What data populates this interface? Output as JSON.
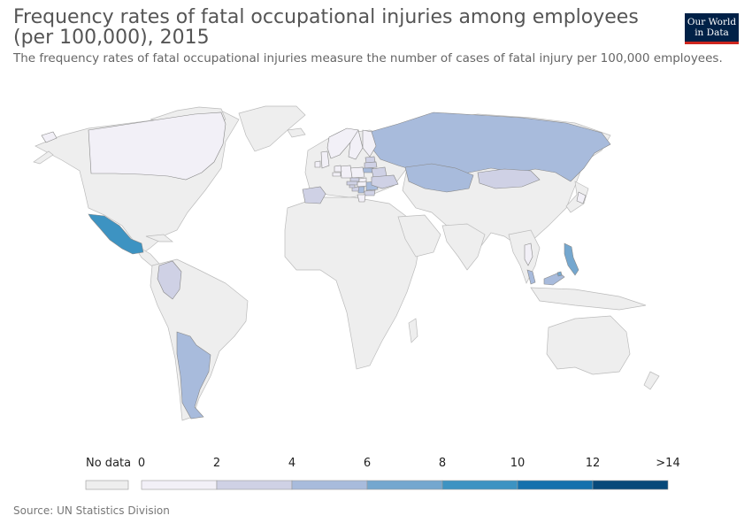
{
  "header": {
    "title": "Frequency rates of fatal occupational injuries among employees (per 100,000), 2015",
    "subtitle": "The frequency rates of fatal occupational injuries measure the number of cases of fatal injury per 100,000 employees."
  },
  "logo": {
    "line1": "Our World",
    "line2": "in Data"
  },
  "colors": {
    "no_data": "#eeeeee",
    "border": "#bbbbbb",
    "bins": [
      "#f2f0f7",
      "#cfd1e5",
      "#a8bbdc",
      "#74a7cf",
      "#3d93c2",
      "#1571ad",
      "#08497a"
    ]
  },
  "legend": {
    "no_data_label": "No data",
    "ticks": [
      "0",
      "2",
      "4",
      "6",
      "8",
      "10",
      "12",
      ">14"
    ]
  },
  "map_regions": {
    "Canada": 0.5,
    "Mexico": 9.5,
    "Colombia": 3.2,
    "Argentina": 5.0,
    "Russia": 5.3,
    "Kazakhstan": 5.6,
    "Mongolia": 3.0,
    "Spain": 2.5,
    "Finland": 1.0,
    "Sweden": 0.8,
    "Norway": 0.9,
    "Estonia": 2.6,
    "Latvia": 3.5,
    "Lithuania": 4.0,
    "Poland": 1.5,
    "Germany": 0.9,
    "Czechia": 2.5,
    "Slovakia": 1.8,
    "Austria": 2.1,
    "Hungary": 1.9,
    "Romania": 4.5,
    "Bulgaria": 2.8,
    "Serbia": 4.2,
    "Croatia": 3.8,
    "Slovenia": 2.0,
    "Greece": 1.2,
    "Belarus": 3.3,
    "Ukraine": 3.6,
    "Netherlands": 0.8,
    "Belgium": 1.5,
    "Ireland": 1.9,
    "United Kingdom": 0.6,
    "Greenland": 0.4,
    "Philippines": 6.5,
    "Malaysia": 5.2,
    "Brunei": 6.0,
    "Thailand": 1.5,
    "Japan": 1.2
  },
  "source": "Source: UN Statistics Division"
}
